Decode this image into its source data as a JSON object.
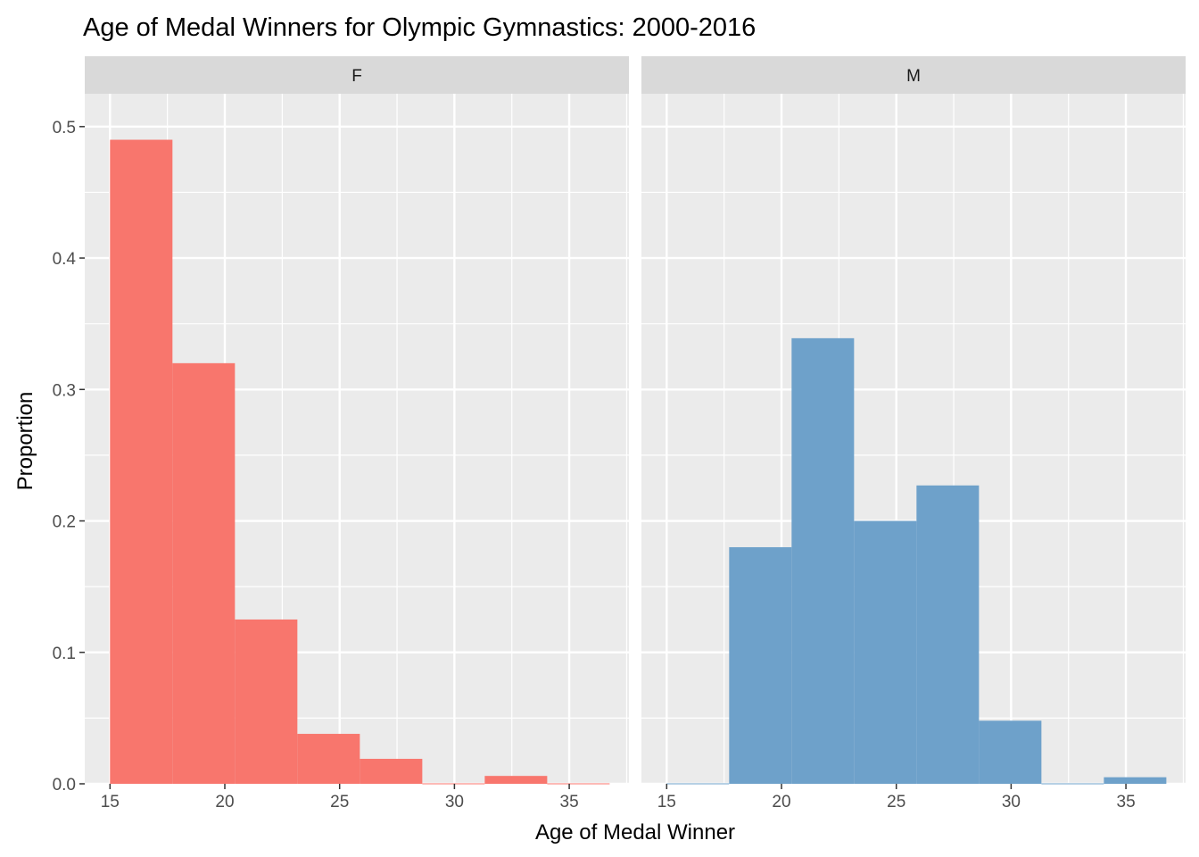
{
  "chart_data": {
    "type": "bar",
    "title": "Age of Medal Winners for Olympic Gymnastics: 2000-2016",
    "xlabel": "Age of Medal Winner",
    "ylabel": "Proportion",
    "xlim": [
      13.9,
      37.6
    ],
    "ylim": [
      0,
      0.525
    ],
    "x_ticks": [
      15,
      20,
      25,
      30,
      35
    ],
    "y_ticks": [
      0.0,
      0.1,
      0.2,
      0.3,
      0.4,
      0.5
    ],
    "x_tick_labels": [
      "15",
      "20",
      "25",
      "30",
      "35"
    ],
    "y_tick_labels": [
      "0.0",
      "0.1",
      "0.2",
      "0.3",
      "0.4",
      "0.5"
    ],
    "grid": true,
    "bin_width": 2.72,
    "panels": [
      {
        "name": "F",
        "color": "#F8766D",
        "bins": [
          {
            "x0": 15.0,
            "x1": 17.72,
            "value": 0.49
          },
          {
            "x0": 17.72,
            "x1": 20.44,
            "value": 0.32
          },
          {
            "x0": 20.44,
            "x1": 23.16,
            "value": 0.125
          },
          {
            "x0": 23.16,
            "x1": 25.88,
            "value": 0.038
          },
          {
            "x0": 25.88,
            "x1": 28.6,
            "value": 0.019
          },
          {
            "x0": 28.6,
            "x1": 31.32,
            "value": 0.0
          },
          {
            "x0": 31.32,
            "x1": 34.04,
            "value": 0.006
          },
          {
            "x0": 34.04,
            "x1": 36.76,
            "value": 0.0
          }
        ]
      },
      {
        "name": "M",
        "color": "#6EA1CA",
        "bins": [
          {
            "x0": 15.0,
            "x1": 17.72,
            "value": 0.0
          },
          {
            "x0": 17.72,
            "x1": 20.44,
            "value": 0.18
          },
          {
            "x0": 20.44,
            "x1": 23.16,
            "value": 0.339
          },
          {
            "x0": 23.16,
            "x1": 25.88,
            "value": 0.2
          },
          {
            "x0": 25.88,
            "x1": 28.6,
            "value": 0.227
          },
          {
            "x0": 28.6,
            "x1": 31.32,
            "value": 0.048
          },
          {
            "x0": 31.32,
            "x1": 34.04,
            "value": 0.0
          },
          {
            "x0": 34.04,
            "x1": 36.76,
            "value": 0.005
          }
        ]
      }
    ]
  }
}
